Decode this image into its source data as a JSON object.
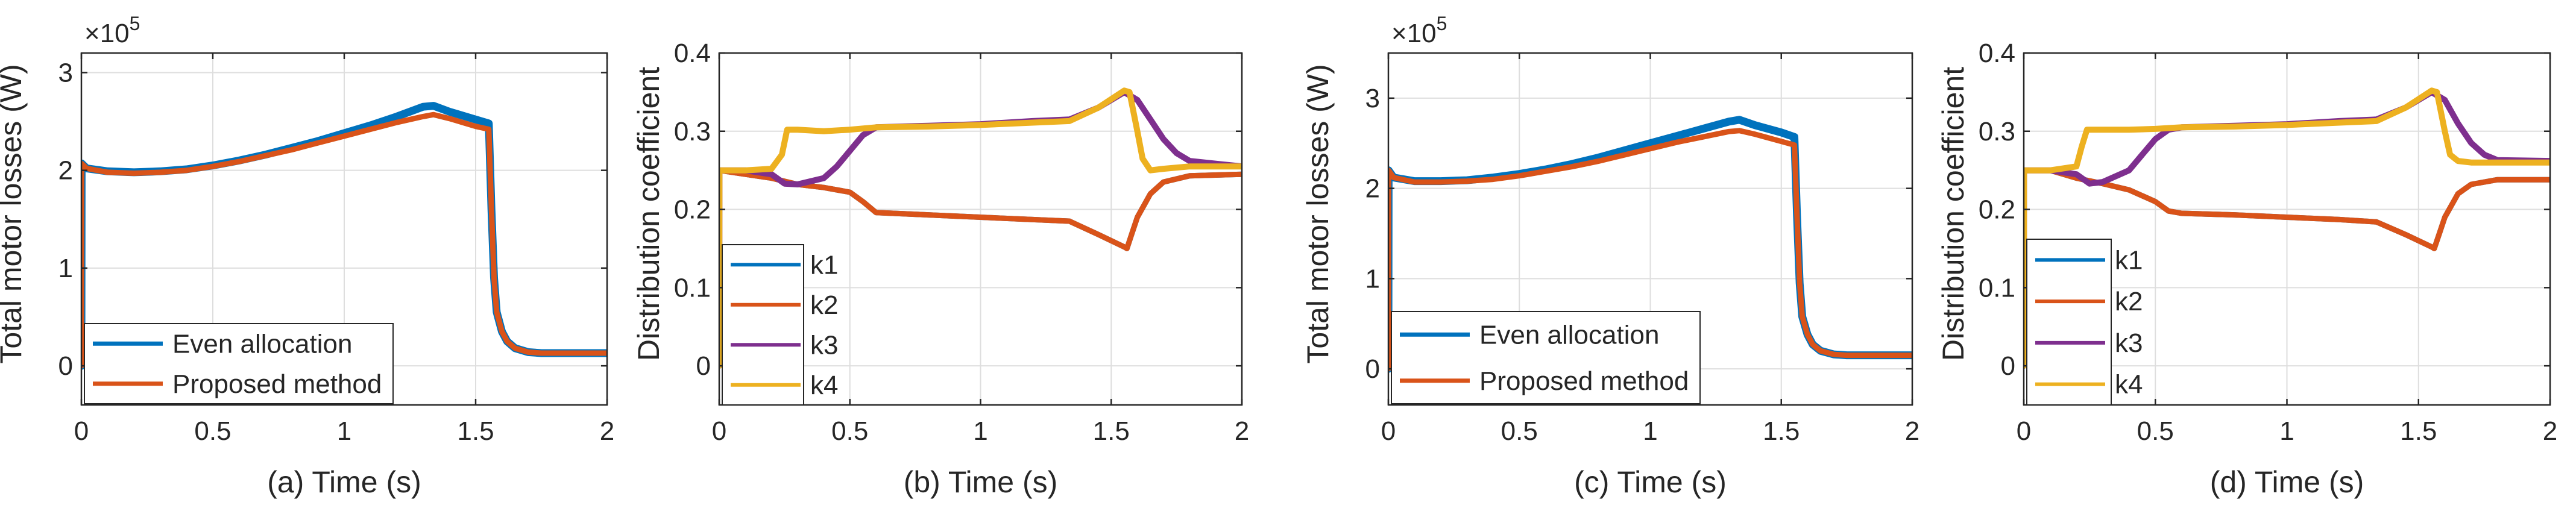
{
  "chart_data": [
    {
      "id": "a",
      "type": "line",
      "xlabel": "(a) Time (s)",
      "ylabel": "Total motor losses (W)",
      "exponent_label": "×10",
      "exponent_power": "5",
      "xlim": [
        0,
        2
      ],
      "ylim": [
        -0.4,
        3.2
      ],
      "xticks": [
        0,
        0.5,
        1,
        1.5,
        2
      ],
      "xtick_labels": [
        "0",
        "0.5",
        "1",
        "1.5",
        "2"
      ],
      "yticks": [
        0,
        1,
        2,
        3
      ],
      "ytick_labels": [
        "0",
        "1",
        "2",
        "3"
      ],
      "grid": true,
      "legend_position": "bottom-left",
      "series": [
        {
          "name": "Even allocation",
          "color": "#0072BD",
          "x": [
            0,
            0.001,
            0.02,
            0.1,
            0.2,
            0.3,
            0.4,
            0.5,
            0.6,
            0.7,
            0.8,
            0.9,
            1.0,
            1.1,
            1.2,
            1.3,
            1.34,
            1.4,
            1.5,
            1.55,
            1.56,
            1.57,
            1.58,
            1.6,
            1.62,
            1.65,
            1.7,
            1.75,
            1.8,
            1.9,
            2.0
          ],
          "y": [
            0,
            2.07,
            2.02,
            1.99,
            1.98,
            1.99,
            2.01,
            2.05,
            2.1,
            2.16,
            2.23,
            2.3,
            2.38,
            2.46,
            2.55,
            2.65,
            2.66,
            2.6,
            2.52,
            2.48,
            1.6,
            0.9,
            0.55,
            0.35,
            0.25,
            0.18,
            0.14,
            0.13,
            0.13,
            0.13,
            0.13
          ]
        },
        {
          "name": "Proposed method",
          "color": "#D95319",
          "x": [
            0,
            0.001,
            0.02,
            0.1,
            0.2,
            0.3,
            0.4,
            0.5,
            0.6,
            0.7,
            0.8,
            0.9,
            1.0,
            1.1,
            1.2,
            1.3,
            1.34,
            1.4,
            1.5,
            1.55,
            1.56,
            1.57,
            1.58,
            1.6,
            1.62,
            1.65,
            1.7,
            1.75,
            1.8,
            1.9,
            2.0
          ],
          "y": [
            0,
            2.07,
            2.02,
            1.98,
            1.97,
            1.98,
            2.0,
            2.04,
            2.09,
            2.15,
            2.21,
            2.28,
            2.35,
            2.42,
            2.49,
            2.55,
            2.57,
            2.53,
            2.45,
            2.42,
            1.6,
            0.9,
            0.55,
            0.35,
            0.25,
            0.18,
            0.14,
            0.13,
            0.13,
            0.13,
            0.13
          ]
        }
      ]
    },
    {
      "id": "b",
      "type": "line",
      "xlabel": "(b) Time (s)",
      "ylabel": "Distribution coefficient",
      "xlim": [
        0,
        2
      ],
      "ylim": [
        -0.05,
        0.4
      ],
      "xticks": [
        0,
        0.5,
        1,
        1.5,
        2
      ],
      "xtick_labels": [
        "0",
        "0.5",
        "1",
        "1.5",
        "2"
      ],
      "yticks": [
        0,
        0.1,
        0.2,
        0.3,
        0.4
      ],
      "ytick_labels": [
        "0",
        "0.1",
        "0.2",
        "0.3",
        "0.4"
      ],
      "grid": true,
      "legend_position": "bottom-left",
      "series": [
        {
          "name": "k1",
          "color": "#0072BD",
          "x": [
            0,
            0.001,
            0.1,
            0.2,
            0.3,
            0.4,
            0.5,
            0.55,
            0.6,
            0.8,
            1.0,
            1.2,
            1.34,
            1.45,
            1.55,
            1.56,
            1.58,
            1.6,
            1.65,
            1.7,
            1.8,
            2.0
          ],
          "y": [
            0,
            0.25,
            0.245,
            0.24,
            0.232,
            0.228,
            0.222,
            0.21,
            0.196,
            0.193,
            0.19,
            0.187,
            0.185,
            0.168,
            0.152,
            0.15,
            0.17,
            0.19,
            0.22,
            0.235,
            0.243,
            0.245
          ]
        },
        {
          "name": "k2",
          "color": "#D95319",
          "x": [
            0,
            0.001,
            0.1,
            0.2,
            0.3,
            0.4,
            0.5,
            0.55,
            0.6,
            0.8,
            1.0,
            1.2,
            1.34,
            1.45,
            1.55,
            1.56,
            1.58,
            1.6,
            1.65,
            1.7,
            1.8,
            2.0
          ],
          "y": [
            0,
            0.25,
            0.245,
            0.24,
            0.232,
            0.228,
            0.222,
            0.21,
            0.196,
            0.193,
            0.19,
            0.187,
            0.185,
            0.168,
            0.152,
            0.15,
            0.17,
            0.19,
            0.22,
            0.235,
            0.243,
            0.245
          ]
        },
        {
          "name": "k3",
          "color": "#7E2F8E",
          "x": [
            0,
            0.001,
            0.1,
            0.2,
            0.25,
            0.3,
            0.4,
            0.45,
            0.5,
            0.55,
            0.6,
            0.8,
            1.0,
            1.2,
            1.34,
            1.45,
            1.55,
            1.6,
            1.65,
            1.7,
            1.75,
            1.8,
            2.0
          ],
          "y": [
            0,
            0.25,
            0.25,
            0.245,
            0.233,
            0.232,
            0.24,
            0.255,
            0.275,
            0.295,
            0.305,
            0.307,
            0.309,
            0.313,
            0.315,
            0.33,
            0.35,
            0.34,
            0.315,
            0.29,
            0.272,
            0.262,
            0.255
          ]
        },
        {
          "name": "k4",
          "color": "#EDB120",
          "x": [
            0,
            0.001,
            0.1,
            0.2,
            0.24,
            0.26,
            0.3,
            0.4,
            0.5,
            0.6,
            0.8,
            1.0,
            1.2,
            1.34,
            1.45,
            1.55,
            1.57,
            1.6,
            1.62,
            1.65,
            1.7,
            1.8,
            2.0
          ],
          "y": [
            0,
            0.25,
            0.25,
            0.252,
            0.27,
            0.302,
            0.302,
            0.3,
            0.302,
            0.305,
            0.306,
            0.308,
            0.311,
            0.313,
            0.33,
            0.352,
            0.35,
            0.3,
            0.265,
            0.25,
            0.252,
            0.255,
            0.255
          ]
        }
      ]
    },
    {
      "id": "c",
      "type": "line",
      "xlabel": "(c) Time (s)",
      "ylabel": "Total motor losses (W)",
      "exponent_label": "×10",
      "exponent_power": "5",
      "xlim": [
        0,
        2
      ],
      "ylim": [
        -0.4,
        3.5
      ],
      "xticks": [
        0,
        0.5,
        1,
        1.5,
        2
      ],
      "xtick_labels": [
        "0",
        "0.5",
        "1",
        "1.5",
        "2"
      ],
      "yticks": [
        0,
        1,
        2,
        3
      ],
      "ytick_labels": [
        "0",
        "1",
        "2",
        "3"
      ],
      "grid": true,
      "legend_position": "bottom-left",
      "series": [
        {
          "name": "Even allocation",
          "color": "#0072BD",
          "x": [
            0,
            0.001,
            0.02,
            0.1,
            0.2,
            0.3,
            0.4,
            0.5,
            0.6,
            0.7,
            0.8,
            0.9,
            1.0,
            1.1,
            1.2,
            1.3,
            1.34,
            1.4,
            1.5,
            1.55,
            1.56,
            1.57,
            1.58,
            1.6,
            1.62,
            1.65,
            1.7,
            1.75,
            1.8,
            1.9,
            2.0
          ],
          "y": [
            0,
            2.2,
            2.12,
            2.08,
            2.08,
            2.09,
            2.12,
            2.16,
            2.21,
            2.27,
            2.34,
            2.42,
            2.5,
            2.58,
            2.66,
            2.74,
            2.76,
            2.7,
            2.62,
            2.57,
            1.7,
            0.95,
            0.58,
            0.38,
            0.27,
            0.2,
            0.16,
            0.15,
            0.15,
            0.15,
            0.15
          ]
        },
        {
          "name": "Proposed method",
          "color": "#D95319",
          "x": [
            0,
            0.001,
            0.02,
            0.1,
            0.2,
            0.3,
            0.4,
            0.5,
            0.6,
            0.7,
            0.8,
            0.9,
            1.0,
            1.1,
            1.2,
            1.3,
            1.34,
            1.4,
            1.5,
            1.55,
            1.56,
            1.57,
            1.58,
            1.6,
            1.62,
            1.65,
            1.7,
            1.75,
            1.8,
            1.9,
            2.0
          ],
          "y": [
            0,
            2.2,
            2.12,
            2.07,
            2.07,
            2.08,
            2.1,
            2.14,
            2.19,
            2.24,
            2.3,
            2.37,
            2.44,
            2.51,
            2.57,
            2.63,
            2.64,
            2.6,
            2.52,
            2.48,
            1.7,
            0.95,
            0.58,
            0.38,
            0.27,
            0.2,
            0.16,
            0.15,
            0.15,
            0.15,
            0.15
          ]
        }
      ]
    },
    {
      "id": "d",
      "type": "line",
      "xlabel": "(d) Time (s)",
      "ylabel": "Distribution coefficient",
      "xlim": [
        0,
        2
      ],
      "ylim": [
        -0.05,
        0.4
      ],
      "xticks": [
        0,
        0.5,
        1,
        1.5,
        2
      ],
      "xtick_labels": [
        "0",
        "0.5",
        "1",
        "1.5",
        "2"
      ],
      "yticks": [
        0,
        0.1,
        0.2,
        0.3,
        0.4
      ],
      "ytick_labels": [
        "0",
        "0.1",
        "0.2",
        "0.3",
        "0.4"
      ],
      "grid": true,
      "legend_position": "bottom-left",
      "series": [
        {
          "name": "k1",
          "color": "#0072BD",
          "x": [
            0,
            0.001,
            0.1,
            0.2,
            0.3,
            0.4,
            0.5,
            0.55,
            0.6,
            0.8,
            1.0,
            1.2,
            1.34,
            1.45,
            1.55,
            1.56,
            1.58,
            1.6,
            1.65,
            1.7,
            1.8,
            2.0
          ],
          "y": [
            0,
            0.25,
            0.25,
            0.24,
            0.233,
            0.225,
            0.21,
            0.198,
            0.195,
            0.193,
            0.19,
            0.187,
            0.184,
            0.168,
            0.152,
            0.15,
            0.17,
            0.19,
            0.22,
            0.232,
            0.238,
            0.238
          ]
        },
        {
          "name": "k2",
          "color": "#D95319",
          "x": [
            0,
            0.001,
            0.1,
            0.2,
            0.3,
            0.4,
            0.5,
            0.55,
            0.6,
            0.8,
            1.0,
            1.2,
            1.34,
            1.45,
            1.55,
            1.56,
            1.58,
            1.6,
            1.65,
            1.7,
            1.8,
            2.0
          ],
          "y": [
            0,
            0.25,
            0.25,
            0.24,
            0.233,
            0.225,
            0.21,
            0.198,
            0.195,
            0.193,
            0.19,
            0.187,
            0.184,
            0.168,
            0.152,
            0.15,
            0.17,
            0.19,
            0.22,
            0.232,
            0.238,
            0.238
          ]
        },
        {
          "name": "k3",
          "color": "#7E2F8E",
          "x": [
            0,
            0.001,
            0.1,
            0.2,
            0.25,
            0.3,
            0.4,
            0.45,
            0.5,
            0.55,
            0.6,
            0.8,
            1.0,
            1.2,
            1.34,
            1.45,
            1.55,
            1.6,
            1.65,
            1.7,
            1.75,
            1.8,
            2.0
          ],
          "y": [
            0,
            0.25,
            0.25,
            0.245,
            0.233,
            0.235,
            0.25,
            0.27,
            0.29,
            0.302,
            0.305,
            0.307,
            0.309,
            0.313,
            0.315,
            0.33,
            0.35,
            0.34,
            0.31,
            0.285,
            0.27,
            0.263,
            0.262
          ]
        },
        {
          "name": "k4",
          "color": "#EDB120",
          "x": [
            0,
            0.001,
            0.1,
            0.2,
            0.22,
            0.24,
            0.3,
            0.4,
            0.5,
            0.6,
            0.8,
            1.0,
            1.2,
            1.34,
            1.45,
            1.55,
            1.57,
            1.6,
            1.62,
            1.65,
            1.7,
            1.8,
            2.0
          ],
          "y": [
            0,
            0.25,
            0.25,
            0.255,
            0.28,
            0.302,
            0.302,
            0.302,
            0.303,
            0.305,
            0.306,
            0.308,
            0.311,
            0.313,
            0.33,
            0.352,
            0.35,
            0.3,
            0.27,
            0.262,
            0.26,
            0.26,
            0.26
          ]
        }
      ]
    }
  ]
}
